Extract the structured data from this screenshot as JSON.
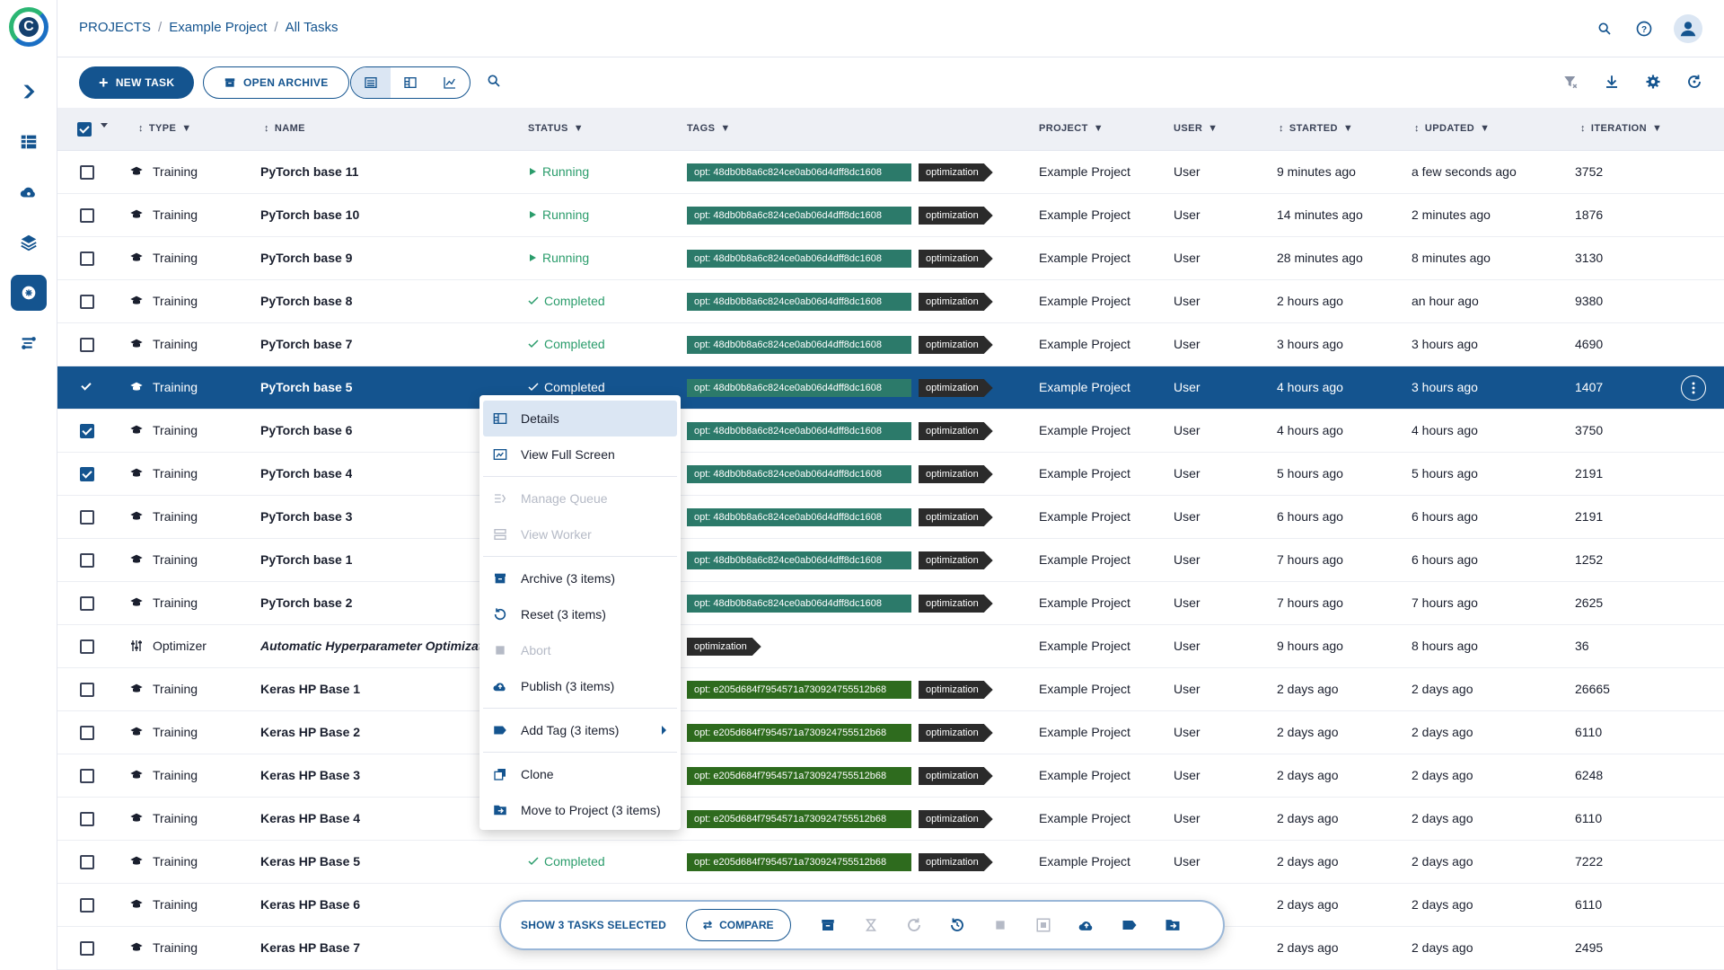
{
  "breadcrumb": [
    "PROJECTS",
    "Example Project",
    "All Tasks"
  ],
  "toolbar": {
    "new_task_label": "NEW TASK",
    "open_archive_label": "OPEN ARCHIVE"
  },
  "columns": {
    "type": "TYPE",
    "name": "NAME",
    "status": "STATUS",
    "tags": "TAGS",
    "project": "PROJECT",
    "user": "USER",
    "started": "STARTED",
    "updated": "UPDATED",
    "iteration": "ITERATION"
  },
  "tasks": [
    {
      "type": "Training",
      "name": "PyTorch base 11",
      "status": "Running",
      "tag": "opt: 48db0b8a6c824ce0ab06d4dff8dc1608",
      "tag2": "optimization",
      "project": "Example Project",
      "user": "User",
      "started": "9 minutes ago",
      "updated": "a few seconds ago",
      "iteration": "3752",
      "checked": false
    },
    {
      "type": "Training",
      "name": "PyTorch base 10",
      "status": "Running",
      "tag": "opt: 48db0b8a6c824ce0ab06d4dff8dc1608",
      "tag2": "optimization",
      "project": "Example Project",
      "user": "User",
      "started": "14 minutes ago",
      "updated": "2 minutes ago",
      "iteration": "1876",
      "checked": false
    },
    {
      "type": "Training",
      "name": "PyTorch base 9",
      "status": "Running",
      "tag": "opt: 48db0b8a6c824ce0ab06d4dff8dc1608",
      "tag2": "optimization",
      "project": "Example Project",
      "user": "User",
      "started": "28 minutes ago",
      "updated": "8 minutes ago",
      "iteration": "3130",
      "checked": false
    },
    {
      "type": "Training",
      "name": "PyTorch base 8",
      "status": "Completed",
      "tag": "opt: 48db0b8a6c824ce0ab06d4dff8dc1608",
      "tag2": "optimization",
      "project": "Example Project",
      "user": "User",
      "started": "2 hours ago",
      "updated": "an hour ago",
      "iteration": "9380",
      "checked": false
    },
    {
      "type": "Training",
      "name": "PyTorch base 7",
      "status": "Completed",
      "tag": "opt: 48db0b8a6c824ce0ab06d4dff8dc1608",
      "tag2": "optimization",
      "project": "Example Project",
      "user": "User",
      "started": "3 hours ago",
      "updated": "3 hours ago",
      "iteration": "4690",
      "checked": false
    },
    {
      "type": "Training",
      "name": "PyTorch base 5",
      "status": "Completed",
      "tag": "opt: 48db0b8a6c824ce0ab06d4dff8dc1608",
      "tag2": "optimization",
      "project": "Example Project",
      "user": "User",
      "started": "4 hours ago",
      "updated": "3 hours ago",
      "iteration": "1407",
      "checked": true,
      "selected": true
    },
    {
      "type": "Training",
      "name": "PyTorch base 6",
      "status": "",
      "tag": "opt: 48db0b8a6c824ce0ab06d4dff8dc1608",
      "tag2": "optimization",
      "project": "Example Project",
      "user": "User",
      "started": "4 hours ago",
      "updated": "4 hours ago",
      "iteration": "3750",
      "checked": true
    },
    {
      "type": "Training",
      "name": "PyTorch base 4",
      "status": "",
      "tag": "opt: 48db0b8a6c824ce0ab06d4dff8dc1608",
      "tag2": "optimization",
      "project": "Example Project",
      "user": "User",
      "started": "5 hours ago",
      "updated": "5 hours ago",
      "iteration": "2191",
      "checked": true
    },
    {
      "type": "Training",
      "name": "PyTorch base 3",
      "status": "",
      "tag": "opt: 48db0b8a6c824ce0ab06d4dff8dc1608",
      "tag2": "optimization",
      "project": "Example Project",
      "user": "User",
      "started": "6 hours ago",
      "updated": "6 hours ago",
      "iteration": "2191",
      "checked": false
    },
    {
      "type": "Training",
      "name": "PyTorch base 1",
      "status": "",
      "tag": "opt: 48db0b8a6c824ce0ab06d4dff8dc1608",
      "tag2": "optimization",
      "project": "Example Project",
      "user": "User",
      "started": "7 hours ago",
      "updated": "6 hours ago",
      "iteration": "1252",
      "checked": false
    },
    {
      "type": "Training",
      "name": "PyTorch base 2",
      "status": "",
      "tag": "opt: 48db0b8a6c824ce0ab06d4dff8dc1608",
      "tag2": "optimization",
      "project": "Example Project",
      "user": "User",
      "started": "7 hours ago",
      "updated": "7 hours ago",
      "iteration": "2625",
      "checked": false
    },
    {
      "type": "Optimizer",
      "name": "Automatic Hyperparameter Optimizatic",
      "status": "",
      "tag": "",
      "tag2": "optimization",
      "project": "Example Project",
      "user": "User",
      "started": "9 hours ago",
      "updated": "8 hours ago",
      "iteration": "36",
      "checked": false,
      "optimizer": true
    },
    {
      "type": "Training",
      "name": "Keras HP Base 1",
      "status": "",
      "tag": "opt: e205d684f7954571a730924755512b68",
      "tag2": "optimization",
      "project": "Example Project",
      "user": "User",
      "started": "2 days ago",
      "updated": "2 days ago",
      "iteration": "26665",
      "checked": false,
      "green": true
    },
    {
      "type": "Training",
      "name": "Keras HP Base 2",
      "status": "",
      "tag": "opt: e205d684f7954571a730924755512b68",
      "tag2": "optimization",
      "project": "Example Project",
      "user": "User",
      "started": "2 days ago",
      "updated": "2 days ago",
      "iteration": "6110",
      "checked": false,
      "green": true
    },
    {
      "type": "Training",
      "name": "Keras HP Base 3",
      "status": "",
      "tag": "opt: e205d684f7954571a730924755512b68",
      "tag2": "optimization",
      "project": "Example Project",
      "user": "User",
      "started": "2 days ago",
      "updated": "2 days ago",
      "iteration": "6248",
      "checked": false,
      "green": true
    },
    {
      "type": "Training",
      "name": "Keras HP Base 4",
      "status": "",
      "tag": "opt: e205d684f7954571a730924755512b68",
      "tag2": "optimization",
      "project": "Example Project",
      "user": "User",
      "started": "2 days ago",
      "updated": "2 days ago",
      "iteration": "6110",
      "checked": false,
      "green": true
    },
    {
      "type": "Training",
      "name": "Keras HP Base 5",
      "status": "Completed",
      "tag": "opt: e205d684f7954571a730924755512b68",
      "tag2": "optimization",
      "project": "Example Project",
      "user": "User",
      "started": "2 days ago",
      "updated": "2 days ago",
      "iteration": "7222",
      "checked": false,
      "green": true
    },
    {
      "type": "Training",
      "name": "Keras HP Base 6",
      "status": "",
      "tag": "",
      "tag2": "",
      "project": "",
      "user": "",
      "started": "2 days ago",
      "updated": "2 days ago",
      "iteration": "6110",
      "checked": false,
      "green": true
    },
    {
      "type": "Training",
      "name": "Keras HP Base 7",
      "status": "",
      "tag": "",
      "tag2": "",
      "project": "",
      "user": "",
      "started": "2 days ago",
      "updated": "2 days ago",
      "iteration": "2495",
      "checked": false,
      "green": true
    }
  ],
  "context_menu": [
    {
      "label": "Details",
      "icon": "details-icon",
      "highlight": true
    },
    {
      "label": "View Full Screen",
      "icon": "fullscreen-icon"
    },
    {
      "sep": true
    },
    {
      "label": "Manage Queue",
      "icon": "queue-icon",
      "disabled": true
    },
    {
      "label": "View Worker",
      "icon": "worker-icon",
      "disabled": true
    },
    {
      "sep": true
    },
    {
      "label": "Archive (3 items)",
      "icon": "archive-icon"
    },
    {
      "label": "Reset (3 items)",
      "icon": "reset-icon"
    },
    {
      "label": "Abort",
      "icon": "abort-icon",
      "disabled": true
    },
    {
      "label": "Publish (3 items)",
      "icon": "publish-icon"
    },
    {
      "sep": true
    },
    {
      "label": "Add Tag (3 items)",
      "icon": "tag-icon",
      "submenu": true
    },
    {
      "sep": true
    },
    {
      "label": "Clone",
      "icon": "clone-icon"
    },
    {
      "label": "Move to Project (3 items)",
      "icon": "move-icon"
    }
  ],
  "action_bar": {
    "selected_label": "SHOW 3 TASKS SELECTED",
    "compare_label": "COMPARE"
  },
  "colors": {
    "primary": "#14548f",
    "running": "#2a9c6b",
    "tag_teal": "#2c7a6a",
    "tag_green": "#2e6b1e",
    "tag_dark": "#2b2b2b"
  }
}
